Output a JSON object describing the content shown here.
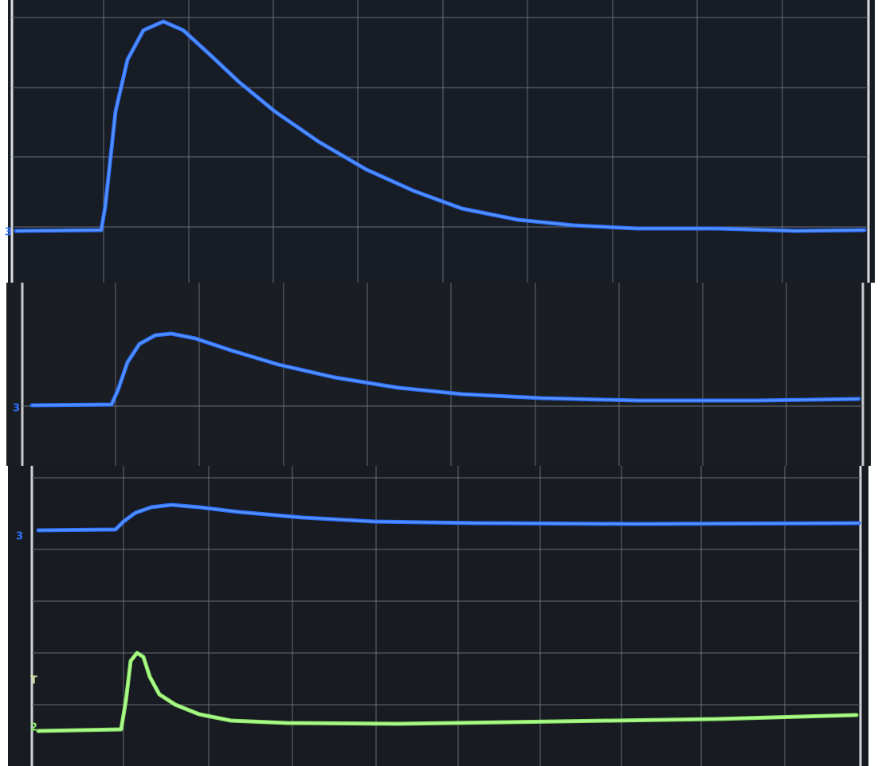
{
  "panels": [
    {
      "markers": [
        "3"
      ]
    },
    {
      "markers": [
        "3"
      ]
    },
    {
      "markers": [
        "3",
        "T",
        "2"
      ]
    }
  ]
}
